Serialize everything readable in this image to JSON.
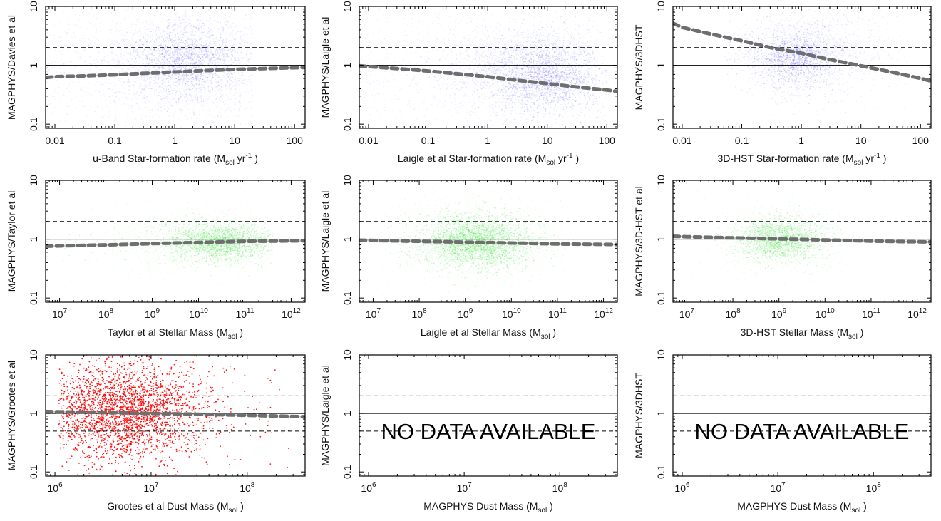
{
  "colors": {
    "blue": "#1a1aff",
    "green": "#22dd22",
    "red": "#ff0000",
    "trend": "#6e6e6e"
  },
  "chart_data": [
    {
      "type": "scatter",
      "color": "blue",
      "log": true,
      "xlabel": "u-Band Star-formation rate",
      "xunit": "(M",
      "xunit_sub": "sol",
      "xunit_tail": " yr",
      "xunit_sup": "-1",
      "xunit_end": " )",
      "ylabel": "MAGPHYS/Davies et al",
      "xlim": [
        0.007,
        150
      ],
      "ylim": [
        0.085,
        10
      ],
      "xticks": [
        {
          "v": 0.01,
          "t": "0.01"
        },
        {
          "v": 0.1,
          "t": "0.1"
        },
        {
          "v": 1,
          "t": "1"
        },
        {
          "v": 10,
          "t": "10"
        },
        {
          "v": 100,
          "t": "100"
        }
      ],
      "yticks": [
        {
          "v": 0.1,
          "t": "0.1"
        },
        {
          "v": 1,
          "t": "1"
        },
        {
          "v": 10,
          "t": "10"
        }
      ],
      "ref_lines": [
        1,
        0.5,
        2
      ],
      "trend": {
        "x": [
          0.007,
          0.01,
          0.03,
          0.1,
          0.3,
          1,
          3,
          10,
          30,
          100,
          150
        ],
        "y": [
          0.62,
          0.64,
          0.66,
          0.69,
          0.73,
          0.77,
          0.81,
          0.85,
          0.88,
          0.91,
          0.92
        ]
      },
      "cloud": [
        {
          "n": 2200,
          "cx": 2.0,
          "cy": 1.1,
          "sx": 0.9,
          "sy": 0.5,
          "a": 0.07
        },
        {
          "n": 1500,
          "cx": 1.5,
          "cy": 1.2,
          "sx": 0.45,
          "sy": 0.3,
          "a": 0.14
        },
        {
          "n": 900,
          "cx": 0.3,
          "cy": 1.0,
          "sx": 1.4,
          "sy": 0.7,
          "a": 0.06
        }
      ],
      "cloud_xrange": [
        0.007,
        20
      ]
    },
    {
      "type": "scatter",
      "color": "blue",
      "log": true,
      "xlabel": "Laigle et al Star-formation rate",
      "xunit": "(M",
      "xunit_sub": "sol",
      "xunit_tail": " yr",
      "xunit_sup": "-1",
      "xunit_end": " )",
      "ylabel": "MAGPHYS/Laigle et al",
      "xlim": [
        0.007,
        150
      ],
      "ylim": [
        0.085,
        10
      ],
      "xticks": [
        {
          "v": 0.01,
          "t": "0.01"
        },
        {
          "v": 0.1,
          "t": "0.1"
        },
        {
          "v": 1,
          "t": "1"
        },
        {
          "v": 10,
          "t": "10"
        },
        {
          "v": 100,
          "t": "100"
        }
      ],
      "yticks": [
        {
          "v": 0.1,
          "t": "0.1"
        },
        {
          "v": 1,
          "t": "1"
        },
        {
          "v": 10,
          "t": "10"
        }
      ],
      "ref_lines": [
        1,
        0.5,
        2
      ],
      "trend": {
        "x": [
          0.007,
          0.01,
          0.03,
          0.1,
          0.3,
          1,
          3,
          10,
          30,
          100,
          150
        ],
        "y": [
          0.98,
          0.95,
          0.88,
          0.8,
          0.72,
          0.64,
          0.56,
          0.49,
          0.43,
          0.38,
          0.36
        ]
      },
      "cloud": [
        {
          "n": 2300,
          "cx": 5.0,
          "cy": 0.8,
          "sx": 0.7,
          "sy": 0.4,
          "a": 0.09
        },
        {
          "n": 1200,
          "cx": 10.0,
          "cy": 0.65,
          "sx": 0.4,
          "sy": 0.3,
          "a": 0.16
        },
        {
          "n": 1300,
          "cx": 0.3,
          "cy": 0.9,
          "sx": 1.4,
          "sy": 0.7,
          "a": 0.05
        }
      ],
      "cloud_xrange": [
        0.007,
        100
      ]
    },
    {
      "type": "scatter",
      "color": "blue",
      "log": true,
      "xlabel": "3D-HST Star-formation rate",
      "xunit": "(M",
      "xunit_sub": "sol",
      "xunit_tail": " yr",
      "xunit_sup": "-1",
      "xunit_end": " )",
      "ylabel": "MAGPHYS/3DHST",
      "xlim": [
        0.007,
        150
      ],
      "ylim": [
        0.085,
        10
      ],
      "xticks": [
        {
          "v": 0.01,
          "t": "0.01"
        },
        {
          "v": 0.1,
          "t": "0.1"
        },
        {
          "v": 1,
          "t": "1"
        },
        {
          "v": 10,
          "t": "10"
        },
        {
          "v": 100,
          "t": "100"
        }
      ],
      "yticks": [
        {
          "v": 0.1,
          "t": "0.1"
        },
        {
          "v": 1,
          "t": "1"
        },
        {
          "v": 10,
          "t": "10"
        }
      ],
      "ref_lines": [
        1,
        0.5,
        2
      ],
      "trend": {
        "x": [
          0.007,
          0.01,
          0.03,
          0.1,
          0.3,
          1,
          3,
          10,
          30,
          100,
          150
        ],
        "y": [
          5.2,
          4.4,
          3.4,
          2.6,
          2.0,
          1.6,
          1.25,
          0.98,
          0.78,
          0.6,
          0.54
        ]
      },
      "cloud": [
        {
          "n": 1700,
          "cx": 1.0,
          "cy": 1.5,
          "sx": 0.55,
          "sy": 0.35,
          "a": 0.09
        },
        {
          "n": 800,
          "cx": 0.8,
          "cy": 1.3,
          "sx": 0.3,
          "sy": 0.2,
          "a": 0.17
        },
        {
          "n": 500,
          "cx": 3.0,
          "cy": 2.0,
          "sx": 0.9,
          "sy": 0.5,
          "a": 0.05
        }
      ],
      "cloud_xrange": [
        0.05,
        60
      ]
    },
    {
      "type": "scatter",
      "color": "green",
      "log": true,
      "xlabel": "Taylor et al Stellar Mass",
      "xunit": "(M",
      "xunit_sub": "sol",
      "xunit_tail": "",
      "xunit_sup": "",
      "xunit_end": " )",
      "ylabel": "MAGPHYS/Taylor et al",
      "xlim": [
        5000000.0,
        2000000000000.0
      ],
      "ylim": [
        0.085,
        10
      ],
      "xticks": [
        {
          "v": 10000000.0,
          "t": "10",
          "e": "7"
        },
        {
          "v": 100000000.0,
          "t": "10",
          "e": "8"
        },
        {
          "v": 1000000000.0,
          "t": "10",
          "e": "9"
        },
        {
          "v": 10000000000.0,
          "t": "10",
          "e": "10"
        },
        {
          "v": 100000000000.0,
          "t": "10",
          "e": "11"
        },
        {
          "v": 1000000000000.0,
          "t": "10",
          "e": "12"
        }
      ],
      "yticks": [
        {
          "v": 0.1,
          "t": "0.1"
        },
        {
          "v": 1,
          "t": "1"
        },
        {
          "v": 10,
          "t": "10"
        }
      ],
      "ref_lines": [
        1,
        0.5,
        2
      ],
      "trend": {
        "x": [
          5000000.0,
          10000000.0,
          100000000.0,
          1000000000.0,
          10000000000.0,
          100000000000.0,
          500000000000.0,
          2000000000000.0
        ],
        "y": [
          0.76,
          0.77,
          0.8,
          0.84,
          0.88,
          0.92,
          0.93,
          0.94
        ]
      },
      "cloud": [
        {
          "n": 2200,
          "cx": 30000000000.0,
          "cy": 0.9,
          "sx": 0.6,
          "sy": 0.16,
          "a": 0.2
        },
        {
          "n": 900,
          "cx": 10000000000.0,
          "cy": 0.9,
          "sx": 0.9,
          "sy": 0.3,
          "a": 0.08
        },
        {
          "n": 400,
          "cx": 1000000000.0,
          "cy": 0.9,
          "sx": 1.0,
          "sy": 0.4,
          "a": 0.05
        }
      ],
      "cloud_xrange": [
        10000000.0,
        400000000000.0
      ]
    },
    {
      "type": "scatter",
      "color": "green",
      "log": true,
      "xlabel": "Laigle et al Stellar Mass",
      "xunit": "(M",
      "xunit_sub": "sol",
      "xunit_tail": "",
      "xunit_sup": "",
      "xunit_end": " )",
      "ylabel": "MAGPHYS/Laigle et al",
      "xlim": [
        5000000.0,
        2000000000000.0
      ],
      "ylim": [
        0.085,
        10
      ],
      "xticks": [
        {
          "v": 10000000.0,
          "t": "10",
          "e": "7"
        },
        {
          "v": 100000000.0,
          "t": "10",
          "e": "8"
        },
        {
          "v": 1000000000.0,
          "t": "10",
          "e": "9"
        },
        {
          "v": 10000000000.0,
          "t": "10",
          "e": "10"
        },
        {
          "v": 100000000000.0,
          "t": "10",
          "e": "11"
        },
        {
          "v": 1000000000000.0,
          "t": "10",
          "e": "12"
        }
      ],
      "yticks": [
        {
          "v": 0.1,
          "t": "0.1"
        },
        {
          "v": 1,
          "t": "1"
        },
        {
          "v": 10,
          "t": "10"
        }
      ],
      "ref_lines": [
        1,
        0.5,
        2
      ],
      "trend": {
        "x": [
          5000000.0,
          10000000.0,
          100000000.0,
          1000000000.0,
          10000000000.0,
          100000000000.0,
          500000000000.0,
          2000000000000.0
        ],
        "y": [
          0.96,
          0.95,
          0.92,
          0.89,
          0.86,
          0.83,
          0.82,
          0.81
        ]
      },
      "cloud": [
        {
          "n": 2600,
          "cx": 1500000000.0,
          "cy": 0.9,
          "sx": 0.6,
          "sy": 0.22,
          "a": 0.22
        },
        {
          "n": 1400,
          "cx": 1000000000.0,
          "cy": 0.9,
          "sx": 0.9,
          "sy": 0.42,
          "a": 0.08
        },
        {
          "n": 500,
          "cx": 10000000000.0,
          "cy": 0.85,
          "sx": 0.6,
          "sy": 0.2,
          "a": 0.07
        }
      ],
      "cloud_xrange": [
        10000000.0,
        300000000000.0
      ]
    },
    {
      "type": "scatter",
      "color": "green",
      "log": true,
      "xlabel": "3D-HST Stellar Mass",
      "xunit": "(M",
      "xunit_sub": "sol",
      "xunit_tail": "",
      "xunit_sup": "",
      "xunit_end": " )",
      "ylabel": "MAGPHYS/3D-HST et al",
      "xlim": [
        5000000.0,
        2000000000000.0
      ],
      "ylim": [
        0.085,
        10
      ],
      "xticks": [
        {
          "v": 10000000.0,
          "t": "10",
          "e": "7"
        },
        {
          "v": 100000000.0,
          "t": "10",
          "e": "8"
        },
        {
          "v": 1000000000.0,
          "t": "10",
          "e": "9"
        },
        {
          "v": 10000000000.0,
          "t": "10",
          "e": "10"
        },
        {
          "v": 100000000000.0,
          "t": "10",
          "e": "11"
        },
        {
          "v": 1000000000000.0,
          "t": "10",
          "e": "12"
        }
      ],
      "yticks": [
        {
          "v": 0.1,
          "t": "0.1"
        },
        {
          "v": 1,
          "t": "1"
        },
        {
          "v": 10,
          "t": "10"
        }
      ],
      "ref_lines": [
        1,
        0.5,
        2
      ],
      "trend": {
        "x": [
          5000000.0,
          10000000.0,
          100000000.0,
          1000000000.0,
          10000000000.0,
          100000000000.0,
          500000000000.0,
          2000000000000.0
        ],
        "y": [
          1.12,
          1.1,
          1.05,
          1.01,
          0.97,
          0.93,
          0.91,
          0.9
        ]
      },
      "cloud": [
        {
          "n": 1700,
          "cx": 1000000000.0,
          "cy": 1.0,
          "sx": 0.45,
          "sy": 0.18,
          "a": 0.2
        },
        {
          "n": 900,
          "cx": 1000000000.0,
          "cy": 1.0,
          "sx": 0.8,
          "sy": 0.32,
          "a": 0.07
        }
      ],
      "cloud_xrange": [
        10000000.0,
        200000000000.0
      ]
    },
    {
      "type": "scatter",
      "color": "red",
      "log": true,
      "xlabel": "Grootes et al Dust Mass",
      "xunit": "(M",
      "xunit_sub": "sol",
      "xunit_tail": "",
      "xunit_sup": "",
      "xunit_end": " )",
      "ylabel": "MAGPHYS/Grootes et al",
      "xlim": [
        800000.0,
        400000000.0
      ],
      "ylim": [
        0.085,
        10
      ],
      "xticks": [
        {
          "v": 1000000.0,
          "t": "10",
          "e": "6"
        },
        {
          "v": 10000000.0,
          "t": "10",
          "e": "7"
        },
        {
          "v": 100000000.0,
          "t": "10",
          "e": "8"
        }
      ],
      "yticks": [
        {
          "v": 0.1,
          "t": "0.1"
        },
        {
          "v": 1,
          "t": "1"
        },
        {
          "v": 10,
          "t": "10"
        }
      ],
      "ref_lines": [
        1,
        0.5,
        2
      ],
      "trend": {
        "x": [
          800000.0,
          1000000.0,
          3000000.0,
          10000000.0,
          30000000.0,
          100000000.0,
          400000000.0
        ],
        "y": [
          1.08,
          1.07,
          1.04,
          1.0,
          0.97,
          0.93,
          0.88
        ]
      },
      "cloud": [
        {
          "n": 2600,
          "cx": 5000000.0,
          "cy": 1.1,
          "sx": 0.42,
          "sy": 0.42,
          "a": 0.9
        }
      ],
      "cloud_xrange": [
        1100000.0,
        300000000.0
      ]
    },
    {
      "type": "scatter",
      "color": "red",
      "log": true,
      "xlabel": "MAGPHYS Dust Mass",
      "xunit": "(M",
      "xunit_sub": "sol",
      "xunit_tail": "",
      "xunit_sup": "",
      "xunit_end": " )",
      "ylabel": "MAGPHYS/Laigle et al",
      "xlim": [
        800000.0,
        400000000.0
      ],
      "ylim": [
        0.085,
        10
      ],
      "xticks": [
        {
          "v": 1000000.0,
          "t": "10",
          "e": "6"
        },
        {
          "v": 10000000.0,
          "t": "10",
          "e": "7"
        },
        {
          "v": 100000000.0,
          "t": "10",
          "e": "8"
        }
      ],
      "yticks": [
        {
          "v": 0.1,
          "t": "0.1"
        },
        {
          "v": 1,
          "t": "1"
        },
        {
          "v": 10,
          "t": "10"
        }
      ],
      "ref_lines": [
        1,
        0.5,
        2
      ],
      "no_data": "NO DATA AVAILABLE"
    },
    {
      "type": "scatter",
      "color": "red",
      "log": true,
      "xlabel": "MAGPHYS Dust Mass",
      "xunit": "(M",
      "xunit_sub": "sol",
      "xunit_tail": "",
      "xunit_sup": "",
      "xunit_end": " )",
      "ylabel": "MAGPHYS/3DHST",
      "xlim": [
        800000.0,
        400000000.0
      ],
      "ylim": [
        0.085,
        10
      ],
      "xticks": [
        {
          "v": 1000000.0,
          "t": "10",
          "e": "6"
        },
        {
          "v": 10000000.0,
          "t": "10",
          "e": "7"
        },
        {
          "v": 100000000.0,
          "t": "10",
          "e": "8"
        }
      ],
      "yticks": [
        {
          "v": 0.1,
          "t": "0.1"
        },
        {
          "v": 1,
          "t": "1"
        },
        {
          "v": 10,
          "t": "10"
        }
      ],
      "ref_lines": [
        1,
        0.5,
        2
      ],
      "no_data": "NO DATA AVAILABLE"
    }
  ]
}
